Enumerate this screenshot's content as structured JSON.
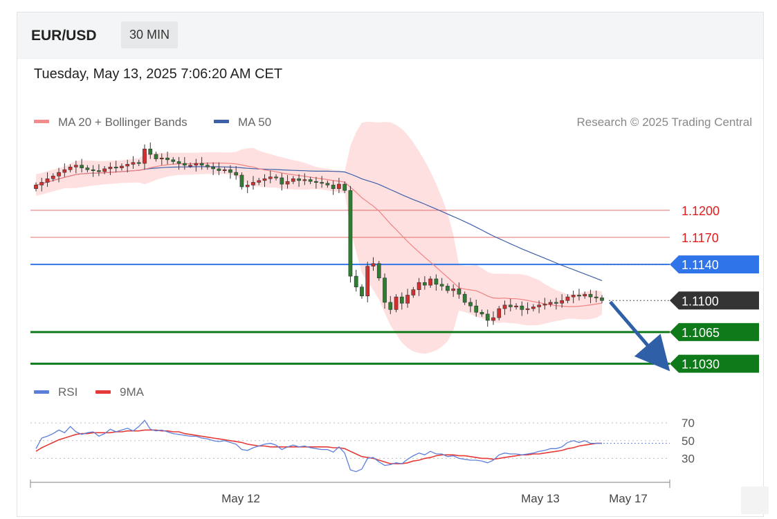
{
  "header": {
    "symbol": "EUR/USD",
    "timeframe": "30 MIN",
    "datetime": "Tuesday, May 13, 2025 7:06:20 AM CET"
  },
  "legend": {
    "ma20": {
      "label": "MA 20 + Bollinger Bands",
      "color": "#f28b8b"
    },
    "ma50": {
      "label": "MA 50",
      "color": "#3d5fa8"
    },
    "credit": "Research © 2025 Trading Central"
  },
  "chart_data": [
    {
      "type": "candlestick",
      "title": "EUR/USD",
      "timeframe": "30 MIN",
      "ylim": [
        1.1022,
        1.1226
      ],
      "levels": [
        {
          "value": 1.12,
          "label": "1.1200",
          "kind": "resistance",
          "color": "#e35d5d"
        },
        {
          "value": 1.117,
          "label": "1.1170",
          "kind": "resistance",
          "color": "#e35d5d"
        },
        {
          "value": 1.114,
          "label": "1.1140",
          "kind": "pivot",
          "color": "#2f74e8"
        },
        {
          "value": 1.11,
          "label": "1.1100",
          "kind": "last",
          "color": "#333333"
        },
        {
          "value": 1.1065,
          "label": "1.1065",
          "kind": "support",
          "color": "#0f7a1a"
        },
        {
          "value": 1.103,
          "label": "1.1030",
          "kind": "support",
          "color": "#0f7a1a"
        }
      ],
      "closes": [
        1.1228,
        1.1231,
        1.1235,
        1.1238,
        1.1242,
        1.1245,
        1.1248,
        1.125,
        1.1247,
        1.1245,
        1.1244,
        1.1243,
        1.1246,
        1.1248,
        1.1247,
        1.1249,
        1.1251,
        1.1253,
        1.1252,
        1.1268,
        1.1262,
        1.1257,
        1.1258,
        1.1256,
        1.1254,
        1.1252,
        1.125,
        1.125,
        1.1252,
        1.125,
        1.1248,
        1.1246,
        1.1244,
        1.1245,
        1.1242,
        1.1239,
        1.1226,
        1.1228,
        1.1231,
        1.1233,
        1.1235,
        1.1237,
        1.1236,
        1.1229,
        1.1232,
        1.1235,
        1.1233,
        1.1234,
        1.1232,
        1.1231,
        1.123,
        1.1228,
        1.1224,
        1.1229,
        1.1222,
        1.1127,
        1.1115,
        1.1105,
        1.1138,
        1.1141,
        1.1125,
        1.1098,
        1.109,
        1.1104,
        1.1097,
        1.1106,
        1.1112,
        1.112,
        1.1117,
        1.1124,
        1.1118,
        1.1116,
        1.1111,
        1.1113,
        1.1107,
        1.1098,
        1.1094,
        1.1087,
        1.1085,
        1.1078,
        1.1081,
        1.1091,
        1.1095,
        1.1093,
        1.1094,
        1.109,
        1.1091,
        1.1093,
        1.1095,
        1.1096,
        1.1098,
        1.1097,
        1.11,
        1.1104,
        1.1106,
        1.1105,
        1.1107,
        1.1104,
        1.1103,
        1.11
      ],
      "ma50_end": 1.114,
      "forecast_arrow": {
        "from": 1.11,
        "to": 1.103,
        "direction": "down"
      },
      "x_labels": [
        "May 12",
        "May 13",
        "May 17"
      ]
    },
    {
      "type": "line",
      "title": "RSI",
      "series": [
        {
          "name": "RSI",
          "color": "#5b7fd9"
        },
        {
          "name": "9MA",
          "color": "#e53935"
        }
      ],
      "ylim": [
        10,
        85
      ],
      "ticks": [
        "70",
        "50",
        "30"
      ],
      "rsi_values": [
        41,
        53,
        55,
        58,
        62,
        59,
        66,
        60,
        57,
        59,
        60,
        55,
        58,
        63,
        60,
        62,
        64,
        61,
        66,
        73,
        63,
        61,
        62,
        60,
        58,
        57,
        56,
        55,
        55,
        53,
        52,
        50,
        49,
        50,
        48,
        46,
        40,
        39,
        42,
        44,
        46,
        47,
        45,
        40,
        43,
        45,
        43,
        44,
        42,
        41,
        40,
        40,
        37,
        43,
        36,
        17,
        15,
        18,
        30,
        31,
        26,
        22,
        23,
        25,
        24,
        29,
        33,
        36,
        34,
        38,
        35,
        35,
        32,
        33,
        30,
        29,
        28,
        28,
        27,
        25,
        28,
        34,
        36,
        35,
        35,
        34,
        35,
        36,
        38,
        39,
        41,
        41,
        43,
        48,
        50,
        48,
        50,
        47,
        47,
        47
      ],
      "ma9_values": [
        38,
        42,
        45,
        48,
        51,
        53,
        55,
        57,
        58,
        58,
        59,
        59,
        59,
        59,
        60,
        60,
        61,
        61,
        61,
        62,
        62,
        62,
        61,
        61,
        60,
        60,
        58,
        57,
        56,
        55,
        54,
        53,
        52,
        51,
        50,
        49,
        48,
        46,
        45,
        44,
        44,
        43,
        43,
        43,
        43,
        43,
        43,
        43,
        43,
        43,
        43,
        43,
        42,
        42,
        41,
        38,
        35,
        32,
        31,
        30,
        28,
        26,
        24,
        24,
        24,
        25,
        27,
        28,
        30,
        31,
        33,
        34,
        34,
        34,
        33,
        33,
        32,
        31,
        30,
        30,
        29,
        30,
        31,
        32,
        33,
        34,
        34,
        35,
        35,
        36,
        37,
        38,
        39,
        41,
        42,
        44,
        45,
        46,
        47,
        47
      ]
    }
  ]
}
